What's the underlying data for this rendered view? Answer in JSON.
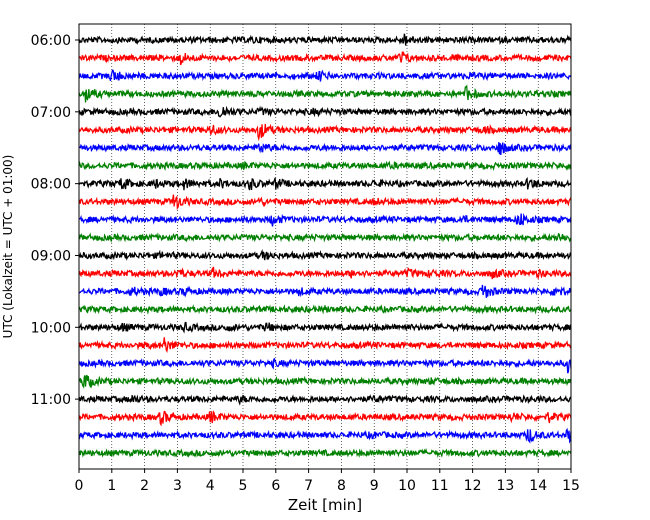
{
  "chart_data": {
    "type": "line",
    "title": "",
    "xlabel": "Zeit  [min]",
    "ylabel": "UTC (Lokalzeit = UTC + 01:00)",
    "xlim": [
      0,
      15
    ],
    "x_ticks": [
      "0",
      "1",
      "2",
      "3",
      "4",
      "5",
      "6",
      "7",
      "8",
      "9",
      "10",
      "11",
      "12",
      "13",
      "14",
      "15"
    ],
    "y_ticks": [
      "06:00",
      "07:00",
      "08:00",
      "09:00",
      "10:00",
      "11:00"
    ],
    "trace_minutes": 15,
    "grid": "vertical dotted lines at each minute",
    "legend": "none",
    "trace_colors": [
      "#000000",
      "#ff0000",
      "#0000ff",
      "#008000"
    ],
    "series": [
      {
        "start": "06:00",
        "color": "#000000",
        "events": [
          [
            9.9,
            1.6
          ],
          [
            5.3,
            0.5
          ]
        ]
      },
      {
        "start": "06:15",
        "color": "#ff0000",
        "events": [
          [
            3.1,
            1.6
          ],
          [
            9.8,
            1.8
          ],
          [
            11.3,
            0.6
          ]
        ]
      },
      {
        "start": "06:30",
        "color": "#0000ff",
        "events": [
          [
            1.0,
            1.8
          ],
          [
            7.3,
            1.4
          ],
          [
            11.9,
            0.5
          ]
        ]
      },
      {
        "start": "06:45",
        "color": "#008000",
        "events": [
          [
            0.2,
            2.2
          ],
          [
            11.8,
            2.0
          ],
          [
            14.0,
            0.4
          ]
        ]
      },
      {
        "start": "07:00",
        "color": "#000000",
        "events": [
          [
            4.3,
            2.2
          ],
          [
            5.5,
            0.7
          ],
          [
            7.1,
            0.5
          ]
        ]
      },
      {
        "start": "07:15",
        "color": "#ff0000",
        "events": [
          [
            4.0,
            1.4
          ],
          [
            5.5,
            2.8
          ],
          [
            12.3,
            0.7
          ]
        ]
      },
      {
        "start": "07:30",
        "color": "#0000ff",
        "events": [
          [
            5.5,
            1.4
          ],
          [
            12.8,
            2.2
          ]
        ]
      },
      {
        "start": "07:45",
        "color": "#008000",
        "events": [
          [
            5.0,
            0.5
          ],
          [
            9.5,
            0.4
          ]
        ]
      },
      {
        "start": "08:00",
        "color": "#000000",
        "events": [
          [
            1.3,
            1.6
          ],
          [
            2.3,
            1.0
          ],
          [
            3.2,
            1.3
          ],
          [
            4.3,
            1.0
          ],
          [
            5.2,
            1.5
          ],
          [
            6.0,
            1.2
          ],
          [
            9.0,
            0.6
          ],
          [
            13.7,
            1.5
          ]
        ]
      },
      {
        "start": "08:15",
        "color": "#ff0000",
        "events": [
          [
            2.9,
            2.4
          ],
          [
            5.5,
            0.6
          ],
          [
            9.0,
            0.6
          ]
        ]
      },
      {
        "start": "08:30",
        "color": "#0000ff",
        "events": [
          [
            5.9,
            1.4
          ],
          [
            11.6,
            1.0
          ],
          [
            13.4,
            2.2
          ]
        ]
      },
      {
        "start": "08:45",
        "color": "#008000",
        "events": [
          [
            14.6,
            1.1
          ]
        ]
      },
      {
        "start": "09:00",
        "color": "#000000",
        "events": [
          [
            2.5,
            0.6
          ],
          [
            5.6,
            0.9
          ]
        ]
      },
      {
        "start": "09:15",
        "color": "#ff0000",
        "events": [
          [
            3.0,
            1.0
          ],
          [
            4.1,
            1.1
          ],
          [
            8.3,
            0.8
          ],
          [
            10.0,
            1.0
          ],
          [
            10.7,
            0.8
          ],
          [
            12.6,
            1.1
          ],
          [
            14.0,
            0.6
          ]
        ]
      },
      {
        "start": "09:30",
        "color": "#0000ff",
        "events": [
          [
            1.6,
            0.9
          ],
          [
            2.5,
            0.7
          ],
          [
            3.2,
            0.8
          ],
          [
            6.7,
            0.7
          ],
          [
            12.3,
            2.4
          ],
          [
            14.5,
            1.6
          ]
        ]
      },
      {
        "start": "09:45",
        "color": "#008000",
        "events": [
          [
            7.5,
            0.4
          ]
        ]
      },
      {
        "start": "10:00",
        "color": "#000000",
        "events": [
          [
            1.3,
            0.9
          ],
          [
            3.2,
            0.9
          ],
          [
            4.5,
            0.7
          ],
          [
            5.7,
            1.0
          ]
        ]
      },
      {
        "start": "10:15",
        "color": "#ff0000",
        "events": [
          [
            2.6,
            1.9
          ],
          [
            2.0,
            0.6
          ]
        ]
      },
      {
        "start": "10:30",
        "color": "#0000ff",
        "events": [
          [
            5.9,
            0.6
          ],
          [
            14.9,
            2.4
          ]
        ]
      },
      {
        "start": "10:45",
        "color": "#008000",
        "events": [
          [
            0.15,
            2.3
          ],
          [
            10.7,
            0.5
          ]
        ]
      },
      {
        "start": "11:00",
        "color": "#000000",
        "events": [
          [
            1.6,
            0.9
          ],
          [
            4.9,
            0.7
          ],
          [
            9.0,
            0.5
          ]
        ]
      },
      {
        "start": "11:15",
        "color": "#ff0000",
        "events": [
          [
            2.5,
            1.9
          ],
          [
            4.0,
            1.6
          ],
          [
            13.2,
            1.0
          ],
          [
            14.3,
            1.2
          ]
        ]
      },
      {
        "start": "11:30",
        "color": "#0000ff",
        "events": [
          [
            8.9,
            0.6
          ],
          [
            13.7,
            2.2
          ],
          [
            14.9,
            1.8
          ]
        ]
      },
      {
        "start": "11:45",
        "color": "#008000",
        "events": []
      }
    ]
  }
}
